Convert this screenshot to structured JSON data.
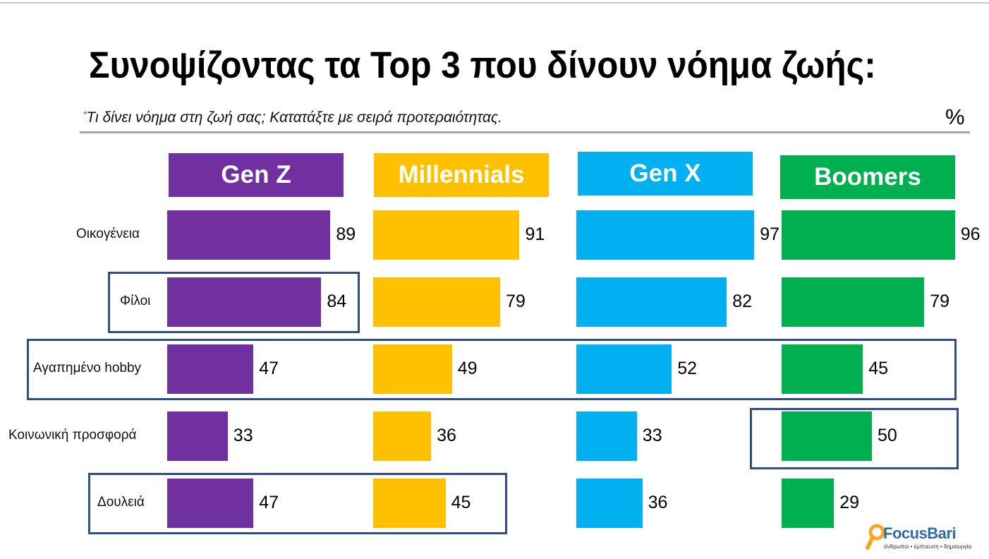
{
  "title": "Συνοψίζοντας τα Top 3 που δίνουν νόημα ζωής:",
  "subtitle_mark": "“",
  "subtitle": "Τι δίνει νόημα στη ζωή σας; Κατατάξτε με σειρά προτεραιότητας.",
  "unit": "%",
  "colors": {
    "genz": "#7030a0",
    "millennials": "#ffc000",
    "genx": "#00b0f0",
    "boomers": "#00b050",
    "highlight": "#2f4c84"
  },
  "chart_data": {
    "type": "bar",
    "categories": [
      "Οικογένεια",
      "Φίλοι",
      "Αγαπημένο hobby",
      "Κοινωνική προσφορά",
      "Δουλειά"
    ],
    "series": [
      {
        "name": "Gen Z",
        "values": [
          89,
          84,
          47,
          33,
          47
        ]
      },
      {
        "name": "Millennials",
        "values": [
          91,
          79,
          49,
          36,
          45
        ]
      },
      {
        "name": "Gen X",
        "values": [
          97,
          82,
          52,
          33,
          36
        ]
      },
      {
        "name": "Boomers",
        "values": [
          96,
          79,
          45,
          50,
          29
        ]
      }
    ]
  },
  "logo": {
    "name": "FocusBari",
    "tagline": "άνθρωποι • έμπνευση • δημιουργία"
  }
}
